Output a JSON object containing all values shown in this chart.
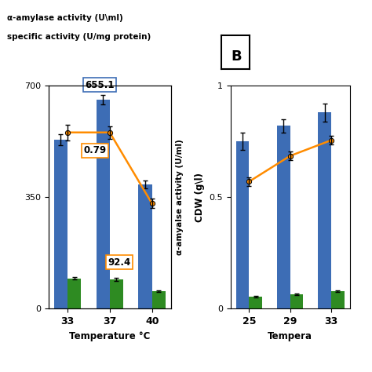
{
  "panel_A": {
    "categories": [
      "33",
      "37",
      "40"
    ],
    "blue_bars": [
      530,
      655.1,
      390
    ],
    "green_bars": [
      95,
      92.4,
      55
    ],
    "blue_errors": [
      18,
      15,
      12
    ],
    "green_errors": [
      4,
      4,
      3
    ],
    "line_values": [
      553,
      553,
      330
    ],
    "line_errors": [
      25,
      20,
      15
    ],
    "ylim": [
      0,
      700
    ],
    "yticks": [
      0,
      350,
      700
    ],
    "ytick_labels": [
      "0",
      "350",
      "700"
    ],
    "xlabel": "Temperature °C",
    "ylabel_right": "α-amyalse activity (U/ml)",
    "ann_655_text": "655.1",
    "ann_92_text": "92.4",
    "ann_079_text": "0.79"
  },
  "panel_B": {
    "categories": [
      "25",
      "29",
      "33"
    ],
    "blue_bars": [
      0.75,
      0.82,
      0.88
    ],
    "green_bars": [
      0.055,
      0.065,
      0.08
    ],
    "blue_errors": [
      0.04,
      0.03,
      0.04
    ],
    "green_errors": [
      0.004,
      0.004,
      0.004
    ],
    "line_values": [
      0.57,
      0.685,
      0.755
    ],
    "line_errors": [
      0.02,
      0.02,
      0.02
    ],
    "ylim": [
      0,
      1
    ],
    "yticks": [
      0,
      0.5,
      1
    ],
    "ytick_labels": [
      "0",
      "0.5",
      "1"
    ],
    "xlabel": "Tempera",
    "ylabel": "CDW (g\\l)"
  },
  "blue_color": "#3D6DB5",
  "green_color": "#2E8B22",
  "orange_color": "#FF8C00",
  "background_color": "#ffffff",
  "legend_line1": "α-amylase activity (U\\ml)",
  "legend_line2": "specific activity (U/mg protein)",
  "panel_b_label": "B"
}
